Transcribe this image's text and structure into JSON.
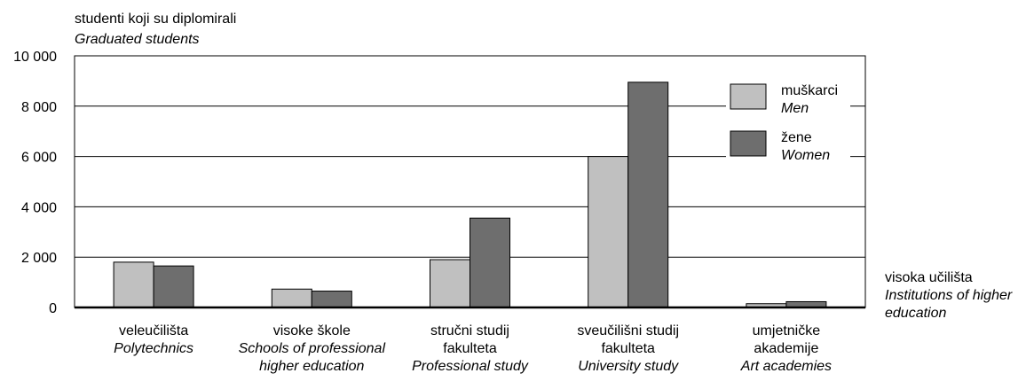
{
  "chart_data": {
    "type": "bar",
    "ylabel": [
      "studenti koji su diplomirali",
      "Graduated students"
    ],
    "xlabel": [
      "visoka učilišta",
      "Institutions of higher",
      "education"
    ],
    "ylim": [
      0,
      10000
    ],
    "yticks": [
      0,
      2000,
      4000,
      6000,
      8000,
      10000
    ],
    "ytick_labels": [
      "0",
      "2 000",
      "4 000",
      "6 000",
      "8 000",
      "10 000"
    ],
    "grid": true,
    "legend_position": "top-right",
    "categories": [
      [
        "veleučilišta",
        "Polytechnics"
      ],
      [
        "visoke škole",
        "Schools of professional",
        "higher education"
      ],
      [
        "stručni studij",
        "fakulteta",
        "Professional study"
      ],
      [
        "sveučilišni studij",
        "fakulteta",
        "University study"
      ],
      [
        "umjetničke",
        "akademije",
        "Art academies"
      ]
    ],
    "category_italic_from": [
      1,
      1,
      2,
      2,
      2
    ],
    "series": [
      {
        "name": [
          "muškarci",
          "Men"
        ],
        "color": "#c0c0c0",
        "values": [
          1800,
          730,
          1900,
          6000,
          150
        ]
      },
      {
        "name": [
          "žene",
          "Women"
        ],
        "color": "#6e6e6e",
        "values": [
          1650,
          650,
          3550,
          8950,
          230
        ]
      }
    ]
  }
}
